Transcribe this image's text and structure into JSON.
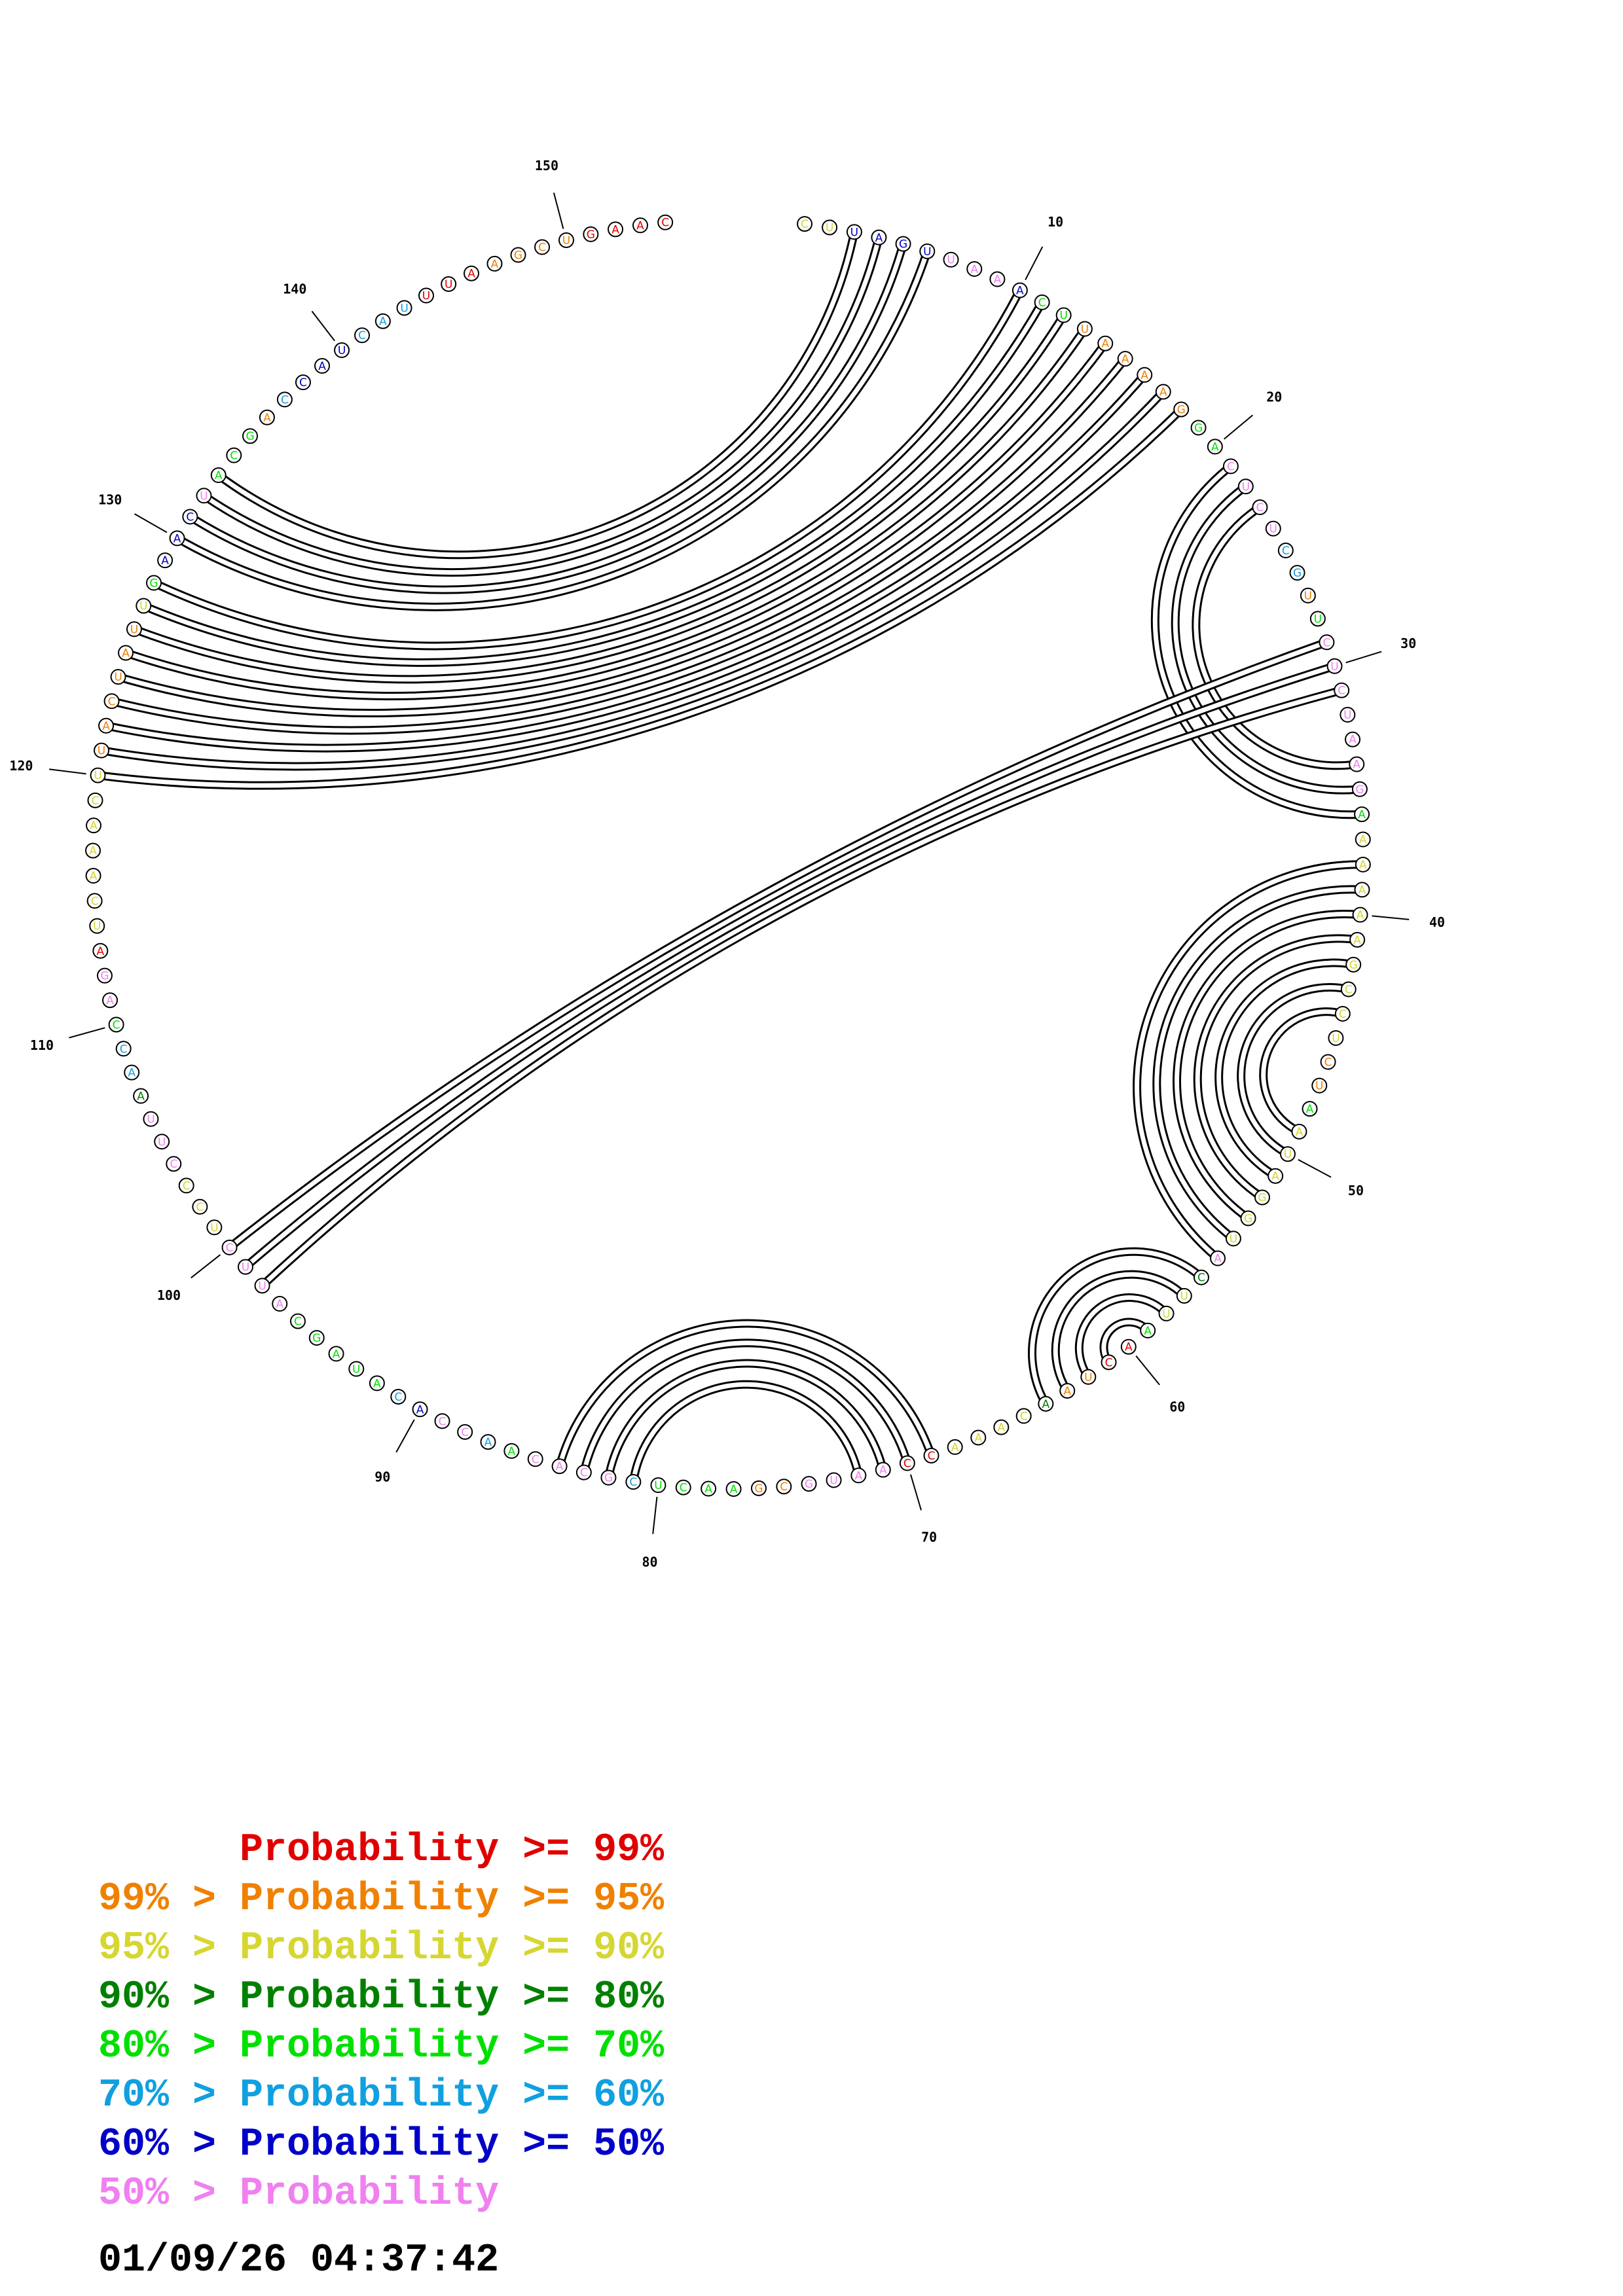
{
  "sequence": "CUUAGUUAAACUUAAAAGGACUCUCGUUCUCUAAGAAAAAAGCCUCUAAUAGGUACUUAACUAACAAACCAAUGCGAACUCGCACAACCACAUAGCAUUCUCCCUUAACCAGAUCAAACUUACUAUUGAACUACGACCAUCAUUUAAGCUGAAC",
  "probability_classes": {
    "C": [
      "r",
      "r",
      "o",
      "o",
      "o",
      "o",
      "o",
      "o",
      "u",
      "B",
      "p",
      "p",
      "b",
      "b",
      "b",
      "c",
      "p",
      "p",
      "B",
      "o",
      "o",
      "o",
      "o",
      "y",
      "g",
      "G",
      "G",
      "p",
      "p",
      "p"
    ],
    "note": "per-nucleotide color class, full list in nucleotide_colors"
  },
  "nucleotide_colors": "rr ooooooo uBBp pBBp ooooo yG Gp ppcg yGpp pp ppGyy yyyyy yyGooo Gyyy yyGp GrrrGyy yyyGrrpp pp G G G yoop pppp G G G G bc pp c G G p p p G G p p p G G",
  "palette": {
    "r": "#e00000",
    "o": "#f08000",
    "y": "#d6d632",
    "G": "#008000",
    "g": "#00e000",
    "c": "#10a0e0",
    "b": "#0000c8",
    "p": "#f080f0"
  },
  "position_labels": [
    "10",
    "20",
    "30",
    "40",
    "50",
    "60",
    "70",
    "80",
    "90",
    "100",
    "110",
    "120",
    "130",
    "140",
    "150"
  ],
  "pairs": [
    [
      3,
      133
    ],
    [
      4,
      132
    ],
    [
      5,
      131
    ],
    [
      6,
      130
    ],
    [
      10,
      128
    ],
    [
      11,
      127
    ],
    [
      12,
      126
    ],
    [
      13,
      125
    ],
    [
      14,
      124
    ],
    [
      15,
      123
    ],
    [
      16,
      122
    ],
    [
      17,
      121
    ],
    [
      18,
      120
    ],
    [
      21,
      36
    ],
    [
      22,
      35
    ],
    [
      23,
      34
    ],
    [
      29,
      100
    ],
    [
      30,
      99
    ],
    [
      31,
      98
    ],
    [
      38,
      55
    ],
    [
      39,
      54
    ],
    [
      40,
      53
    ],
    [
      41,
      52
    ],
    [
      42,
      51
    ],
    [
      43,
      50
    ],
    [
      44,
      49
    ],
    [
      56,
      64
    ],
    [
      57,
      63
    ],
    [
      58,
      62
    ],
    [
      59,
      61
    ],
    [
      69,
      84
    ],
    [
      70,
      83
    ],
    [
      71,
      82
    ],
    [
      72,
      81
    ]
  ],
  "legend": [
    {
      "text": "      Probability >= 99%",
      "color": "#e00000"
    },
    {
      "text": "99% > Probability >= 95%",
      "color": "#f08000"
    },
    {
      "text": "95% > Probability >= 90%",
      "color": "#d6d632"
    },
    {
      "text": "90% > Probability >= 80%",
      "color": "#008000"
    },
    {
      "text": "80% > Probability >= 70%",
      "color": "#00e000"
    },
    {
      "text": "70% > Probability >= 60%",
      "color": "#10a0e0"
    },
    {
      "text": "60% > Probability >= 50%",
      "color": "#0000c8"
    },
    {
      "text": "50% > Probability",
      "color": "#f080f0"
    }
  ],
  "timestamp": "01/09/26 04:37:42"
}
